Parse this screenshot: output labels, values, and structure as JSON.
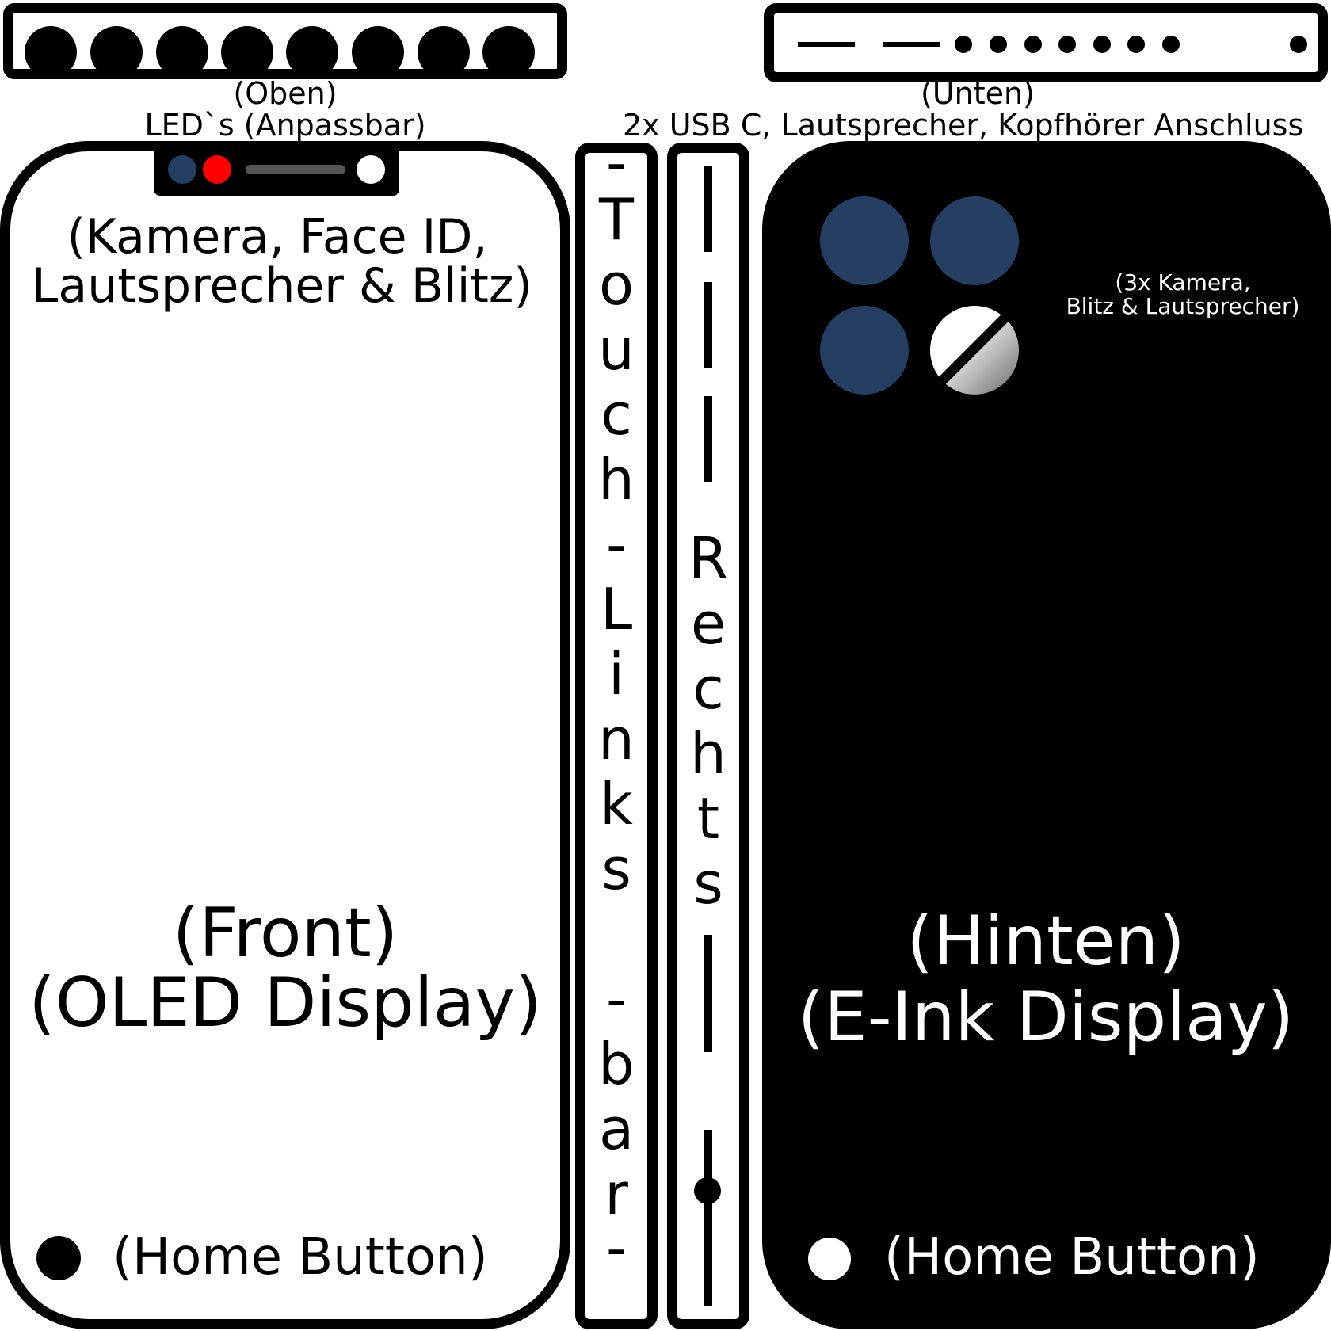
{
  "led_strip": {
    "led_count": 8,
    "led_color": "#000000"
  },
  "edge_strip": {
    "dashes": 2,
    "port_dots": 8
  },
  "labels": {
    "top_title": "(Oben)",
    "top_subtitle": "LED`s (Anpassbar)",
    "bottom_title": "(Unten)",
    "bottom_subtitle": "2x USB C,  Lautsprecher,  Kopfhörer Anschluss"
  },
  "front": {
    "notch_dot_colors": [
      "#253f63",
      "#ff0000",
      "#ffffff"
    ],
    "notch_line1": "(Kamera, Face ID,",
    "notch_line2": "Lautsprecher & Blitz)",
    "title_line1": "(Front)",
    "title_line2": "(OLED Display)",
    "home_label": "(Home Button)"
  },
  "left_bar": {
    "chars": [
      "-",
      "T",
      "o",
      "u",
      "c",
      "h",
      "-",
      "L",
      "i",
      "n",
      "k",
      "s",
      "-",
      "b",
      "a",
      "r",
      "-"
    ]
  },
  "right_bar": {
    "chars": [
      "R",
      "e",
      "c",
      "h",
      "t",
      "s"
    ]
  },
  "back": {
    "camera_color": "#253f63",
    "camera_note_line1": "(3x Kamera,",
    "camera_note_line2": "Blitz & Lautsprecher)",
    "title_line1": "(Hinten)",
    "title_line2": "(E-Ink Display)",
    "home_label": "(Home Button)"
  }
}
